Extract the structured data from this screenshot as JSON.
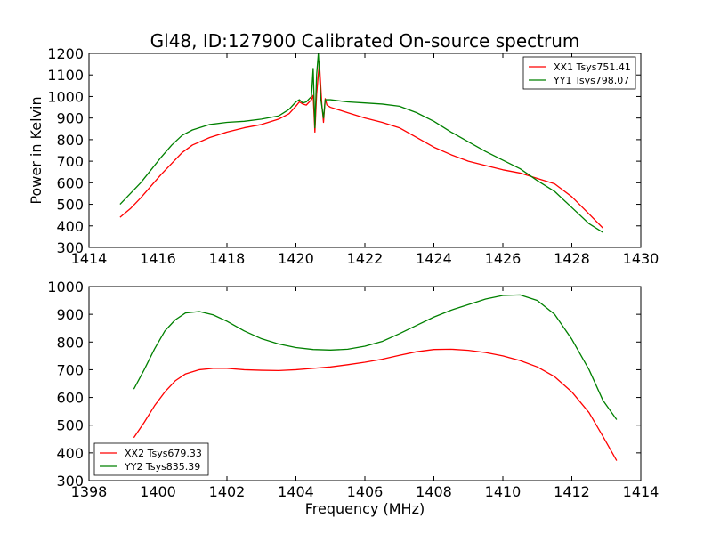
{
  "figure": {
    "title": "Gl48, ID:127900 Calibrated On-source spectrum"
  },
  "chart_data": [
    {
      "type": "line",
      "title": "Gl48, ID:127900 Calibrated On-source spectrum",
      "xlabel": "",
      "ylabel": "Power in Kelvin",
      "xlim": [
        1414,
        1430
      ],
      "ylim": [
        300,
        1200
      ],
      "xticks": [
        "1414",
        "1416",
        "1418",
        "1420",
        "1422",
        "1424",
        "1426",
        "1428",
        "1430"
      ],
      "yticks": [
        "300",
        "400",
        "500",
        "600",
        "700",
        "800",
        "900",
        "1000",
        "1100",
        "1200"
      ],
      "grid": false,
      "legend_position": "top-right",
      "series": [
        {
          "name": "XX1 Tsys751.41",
          "color": "#ff0000",
          "points": [
            [
              1414.9,
              440
            ],
            [
              1415.2,
              480
            ],
            [
              1415.5,
              530
            ],
            [
              1415.8,
              585
            ],
            [
              1416.1,
              640
            ],
            [
              1416.4,
              690
            ],
            [
              1416.7,
              740
            ],
            [
              1417.0,
              775
            ],
            [
              1417.5,
              810
            ],
            [
              1418.0,
              835
            ],
            [
              1418.5,
              855
            ],
            [
              1419.0,
              870
            ],
            [
              1419.5,
              895
            ],
            [
              1419.8,
              920
            ],
            [
              1420.0,
              955
            ],
            [
              1420.1,
              975
            ],
            [
              1420.2,
              965
            ],
            [
              1420.3,
              960
            ],
            [
              1420.45,
              985
            ],
            [
              1420.5,
              1005
            ],
            [
              1420.55,
              835
            ],
            [
              1420.6,
              1010
            ],
            [
              1420.68,
              1160
            ],
            [
              1420.75,
              965
            ],
            [
              1420.8,
              880
            ],
            [
              1420.85,
              990
            ],
            [
              1420.9,
              960
            ],
            [
              1421.0,
              950
            ],
            [
              1421.5,
              925
            ],
            [
              1422.0,
              900
            ],
            [
              1422.5,
              880
            ],
            [
              1423.0,
              855
            ],
            [
              1423.5,
              810
            ],
            [
              1424.0,
              765
            ],
            [
              1424.5,
              730
            ],
            [
              1425.0,
              700
            ],
            [
              1425.5,
              680
            ],
            [
              1426.0,
              660
            ],
            [
              1426.5,
              645
            ],
            [
              1427.0,
              620
            ],
            [
              1427.5,
              595
            ],
            [
              1428.0,
              535
            ],
            [
              1428.5,
              455
            ],
            [
              1428.9,
              390
            ]
          ]
        },
        {
          "name": "YY1 Tsys798.07",
          "color": "#008000",
          "points": [
            [
              1414.9,
              500
            ],
            [
              1415.2,
              550
            ],
            [
              1415.5,
              600
            ],
            [
              1415.8,
              660
            ],
            [
              1416.1,
              720
            ],
            [
              1416.4,
              775
            ],
            [
              1416.7,
              820
            ],
            [
              1417.0,
              845
            ],
            [
              1417.5,
              870
            ],
            [
              1418.0,
              880
            ],
            [
              1418.5,
              885
            ],
            [
              1419.0,
              895
            ],
            [
              1419.5,
              910
            ],
            [
              1419.8,
              940
            ],
            [
              1420.0,
              975
            ],
            [
              1420.1,
              985
            ],
            [
              1420.2,
              970
            ],
            [
              1420.3,
              975
            ],
            [
              1420.45,
              1000
            ],
            [
              1420.5,
              1130
            ],
            [
              1420.55,
              855
            ],
            [
              1420.6,
              1100
            ],
            [
              1420.65,
              1200
            ],
            [
              1420.72,
              990
            ],
            [
              1420.8,
              900
            ],
            [
              1420.85,
              985
            ],
            [
              1421.0,
              985
            ],
            [
              1421.5,
              975
            ],
            [
              1422.0,
              970
            ],
            [
              1422.5,
              965
            ],
            [
              1423.0,
              955
            ],
            [
              1423.5,
              925
            ],
            [
              1424.0,
              885
            ],
            [
              1424.5,
              835
            ],
            [
              1425.0,
              790
            ],
            [
              1425.5,
              745
            ],
            [
              1426.0,
              705
            ],
            [
              1426.5,
              665
            ],
            [
              1427.0,
              610
            ],
            [
              1427.5,
              560
            ],
            [
              1428.0,
              485
            ],
            [
              1428.5,
              410
            ],
            [
              1428.9,
              370
            ]
          ]
        }
      ]
    },
    {
      "type": "line",
      "title": "",
      "xlabel": "Frequency (MHz)",
      "ylabel": "",
      "xlim": [
        1398,
        1414
      ],
      "ylim": [
        300,
        1000
      ],
      "xticks": [
        "1398",
        "1400",
        "1402",
        "1404",
        "1406",
        "1408",
        "1410",
        "1412",
        "1414"
      ],
      "yticks": [
        "300",
        "400",
        "500",
        "600",
        "700",
        "800",
        "900",
        "1000"
      ],
      "grid": false,
      "legend_position": "bottom-left",
      "series": [
        {
          "name": "XX2 Tsys679.33",
          "color": "#ff0000",
          "points": [
            [
              1399.3,
              455
            ],
            [
              1399.6,
              510
            ],
            [
              1399.9,
              570
            ],
            [
              1400.2,
              620
            ],
            [
              1400.5,
              660
            ],
            [
              1400.8,
              685
            ],
            [
              1401.2,
              700
            ],
            [
              1401.6,
              705
            ],
            [
              1402.0,
              705
            ],
            [
              1402.5,
              700
            ],
            [
              1403.0,
              698
            ],
            [
              1403.5,
              697
            ],
            [
              1404.0,
              700
            ],
            [
              1404.5,
              705
            ],
            [
              1405.0,
              710
            ],
            [
              1405.5,
              718
            ],
            [
              1406.0,
              727
            ],
            [
              1406.5,
              738
            ],
            [
              1407.0,
              752
            ],
            [
              1407.5,
              765
            ],
            [
              1408.0,
              773
            ],
            [
              1408.5,
              774
            ],
            [
              1409.0,
              770
            ],
            [
              1409.5,
              762
            ],
            [
              1410.0,
              750
            ],
            [
              1410.5,
              733
            ],
            [
              1411.0,
              710
            ],
            [
              1411.5,
              675
            ],
            [
              1412.0,
              620
            ],
            [
              1412.5,
              545
            ],
            [
              1412.9,
              460
            ],
            [
              1413.3,
              372
            ]
          ]
        },
        {
          "name": "YY2 Tsys835.39",
          "color": "#008000",
          "points": [
            [
              1399.3,
              630
            ],
            [
              1399.6,
              700
            ],
            [
              1399.9,
              775
            ],
            [
              1400.2,
              840
            ],
            [
              1400.5,
              880
            ],
            [
              1400.8,
              905
            ],
            [
              1401.2,
              910
            ],
            [
              1401.6,
              898
            ],
            [
              1402.0,
              875
            ],
            [
              1402.5,
              840
            ],
            [
              1403.0,
              812
            ],
            [
              1403.5,
              793
            ],
            [
              1404.0,
              780
            ],
            [
              1404.5,
              773
            ],
            [
              1405.0,
              771
            ],
            [
              1405.5,
              774
            ],
            [
              1406.0,
              785
            ],
            [
              1406.5,
              802
            ],
            [
              1407.0,
              830
            ],
            [
              1407.5,
              860
            ],
            [
              1408.0,
              890
            ],
            [
              1408.5,
              915
            ],
            [
              1409.0,
              935
            ],
            [
              1409.5,
              955
            ],
            [
              1410.0,
              968
            ],
            [
              1410.5,
              970
            ],
            [
              1411.0,
              950
            ],
            [
              1411.5,
              900
            ],
            [
              1412.0,
              810
            ],
            [
              1412.5,
              700
            ],
            [
              1412.9,
              590
            ],
            [
              1413.3,
              520
            ]
          ]
        }
      ]
    }
  ]
}
